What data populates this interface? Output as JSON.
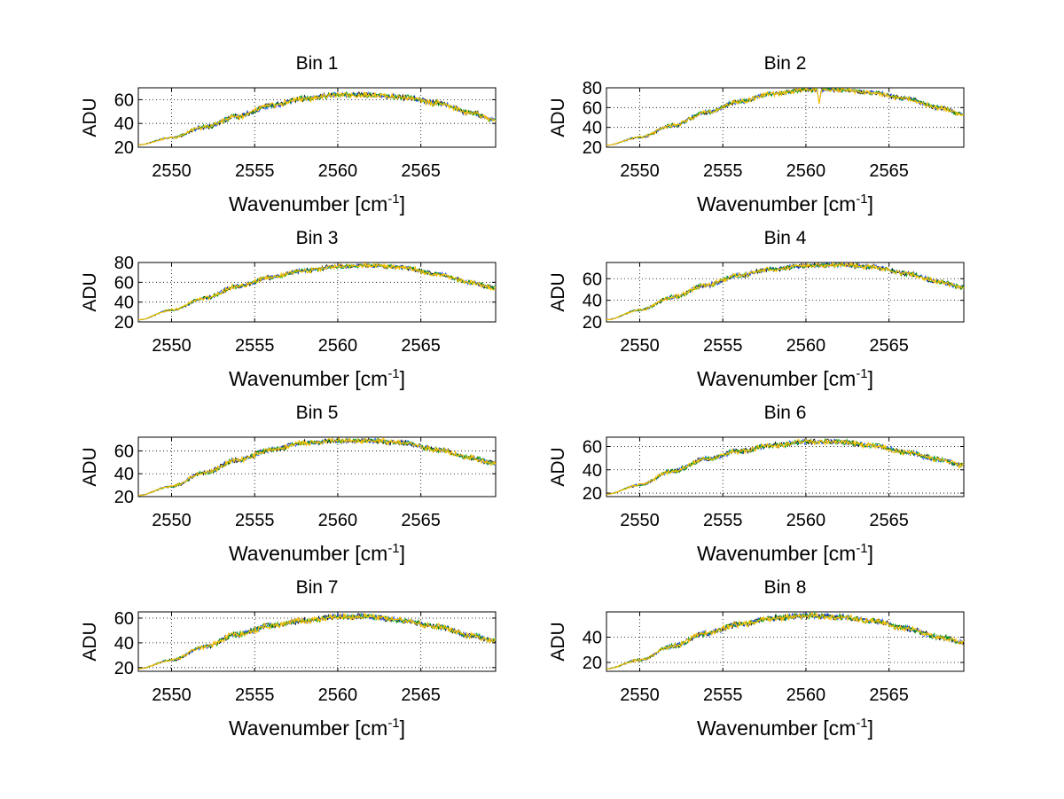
{
  "figure": {
    "background": "#ffffff",
    "series_colors": [
      "#000000",
      "#1f4fff",
      "#00a000",
      "#ffc000"
    ]
  },
  "chart_data": [
    {
      "type": "line",
      "title": "Bin 1",
      "xlabel": "Wavenumber [cm",
      "xlabel_sup": "-1",
      "xlabel_suffix": "]",
      "ylabel": "ADU",
      "xlim": [
        2548,
        2569.5
      ],
      "ylim": [
        20,
        70
      ],
      "xticks": [
        2550,
        2555,
        2560,
        2565
      ],
      "yticks": [
        20,
        40,
        60
      ],
      "grid": true,
      "x": [
        2548,
        2550,
        2552,
        2554,
        2556,
        2558,
        2560,
        2562,
        2564,
        2566,
        2568,
        2569.5
      ],
      "values": [
        22,
        28,
        37,
        46,
        55,
        61,
        64,
        64,
        62,
        57,
        49,
        43
      ]
    },
    {
      "type": "line",
      "title": "Bin 2",
      "xlabel": "Wavenumber [cm",
      "xlabel_sup": "-1",
      "xlabel_suffix": "]",
      "ylabel": "ADU",
      "xlim": [
        2548,
        2569.5
      ],
      "ylim": [
        20,
        80
      ],
      "xticks": [
        2550,
        2555,
        2560,
        2565
      ],
      "yticks": [
        20,
        40,
        60,
        80
      ],
      "grid": true,
      "x": [
        2548,
        2550,
        2552,
        2554,
        2556,
        2558,
        2560,
        2562,
        2564,
        2566,
        2568,
        2569.5
      ],
      "values": [
        22,
        30,
        42,
        55,
        66,
        74,
        78,
        78,
        75,
        69,
        60,
        53
      ],
      "dips": [
        {
          "x": 2560.8,
          "value": 63
        }
      ]
    },
    {
      "type": "line",
      "title": "Bin 3",
      "xlabel": "Wavenumber [cm",
      "xlabel_sup": "-1",
      "xlabel_suffix": "]",
      "ylabel": "ADU",
      "xlim": [
        2548,
        2569.5
      ],
      "ylim": [
        20,
        80
      ],
      "xticks": [
        2550,
        2555,
        2560,
        2565
      ],
      "yticks": [
        20,
        40,
        60,
        80
      ],
      "grid": true,
      "x": [
        2548,
        2550,
        2552,
        2554,
        2556,
        2558,
        2560,
        2562,
        2564,
        2566,
        2568,
        2569.5
      ],
      "values": [
        22,
        32,
        44,
        56,
        65,
        72,
        76,
        77,
        75,
        68,
        60,
        54
      ]
    },
    {
      "type": "line",
      "title": "Bin 4",
      "xlabel": "Wavenumber [cm",
      "xlabel_sup": "-1",
      "xlabel_suffix": "]",
      "ylabel": "ADU",
      "xlim": [
        2548,
        2569.5
      ],
      "ylim": [
        20,
        75
      ],
      "xticks": [
        2550,
        2555,
        2560,
        2565
      ],
      "yticks": [
        20,
        40,
        60
      ],
      "grid": true,
      "x": [
        2548,
        2550,
        2552,
        2554,
        2556,
        2558,
        2560,
        2562,
        2564,
        2566,
        2568,
        2569.5
      ],
      "values": [
        22,
        31,
        43,
        54,
        63,
        69,
        72,
        73,
        71,
        65,
        57,
        52
      ]
    },
    {
      "type": "line",
      "title": "Bin 5",
      "xlabel": "Wavenumber [cm",
      "xlabel_sup": "-1",
      "xlabel_suffix": "]",
      "ylabel": "ADU",
      "xlim": [
        2548,
        2569.5
      ],
      "ylim": [
        20,
        72
      ],
      "xticks": [
        2550,
        2555,
        2560,
        2565
      ],
      "yticks": [
        20,
        40,
        60
      ],
      "grid": true,
      "x": [
        2548,
        2550,
        2552,
        2554,
        2556,
        2558,
        2560,
        2562,
        2564,
        2566,
        2568,
        2569.5
      ],
      "values": [
        21,
        29,
        41,
        52,
        61,
        67,
        69,
        69,
        67,
        61,
        54,
        49
      ]
    },
    {
      "type": "line",
      "title": "Bin 6",
      "xlabel": "Wavenumber [cm",
      "xlabel_sup": "-1",
      "xlabel_suffix": "]",
      "ylabel": "ADU",
      "xlim": [
        2548,
        2569.5
      ],
      "ylim": [
        17,
        68
      ],
      "xticks": [
        2550,
        2555,
        2560,
        2565
      ],
      "yticks": [
        20,
        40,
        60
      ],
      "grid": true,
      "x": [
        2548,
        2550,
        2552,
        2554,
        2556,
        2558,
        2560,
        2562,
        2564,
        2566,
        2568,
        2569.5
      ],
      "values": [
        19,
        27,
        39,
        49,
        56,
        61,
        64,
        64,
        61,
        55,
        49,
        44
      ]
    },
    {
      "type": "line",
      "title": "Bin 7",
      "xlabel": "Wavenumber [cm",
      "xlabel_sup": "-1",
      "xlabel_suffix": "]",
      "ylabel": "ADU",
      "xlim": [
        2548,
        2569.5
      ],
      "ylim": [
        17,
        65
      ],
      "xticks": [
        2550,
        2555,
        2560,
        2565
      ],
      "yticks": [
        20,
        40,
        60
      ],
      "grid": true,
      "x": [
        2548,
        2550,
        2552,
        2554,
        2556,
        2558,
        2560,
        2562,
        2564,
        2566,
        2568,
        2569.5
      ],
      "values": [
        19,
        26,
        37,
        47,
        54,
        58,
        61,
        61,
        58,
        53,
        46,
        42
      ]
    },
    {
      "type": "line",
      "title": "Bin 8",
      "xlabel": "Wavenumber [cm",
      "xlabel_sup": "-1",
      "xlabel_suffix": "]",
      "ylabel": "ADU",
      "xlim": [
        2548,
        2569.5
      ],
      "ylim": [
        13,
        60
      ],
      "xticks": [
        2550,
        2555,
        2560,
        2565
      ],
      "yticks": [
        20,
        40
      ],
      "grid": true,
      "x": [
        2548,
        2550,
        2552,
        2554,
        2556,
        2558,
        2560,
        2562,
        2564,
        2566,
        2568,
        2569.5
      ],
      "values": [
        15,
        22,
        33,
        43,
        50,
        55,
        57,
        56,
        53,
        47,
        40,
        36
      ]
    }
  ]
}
